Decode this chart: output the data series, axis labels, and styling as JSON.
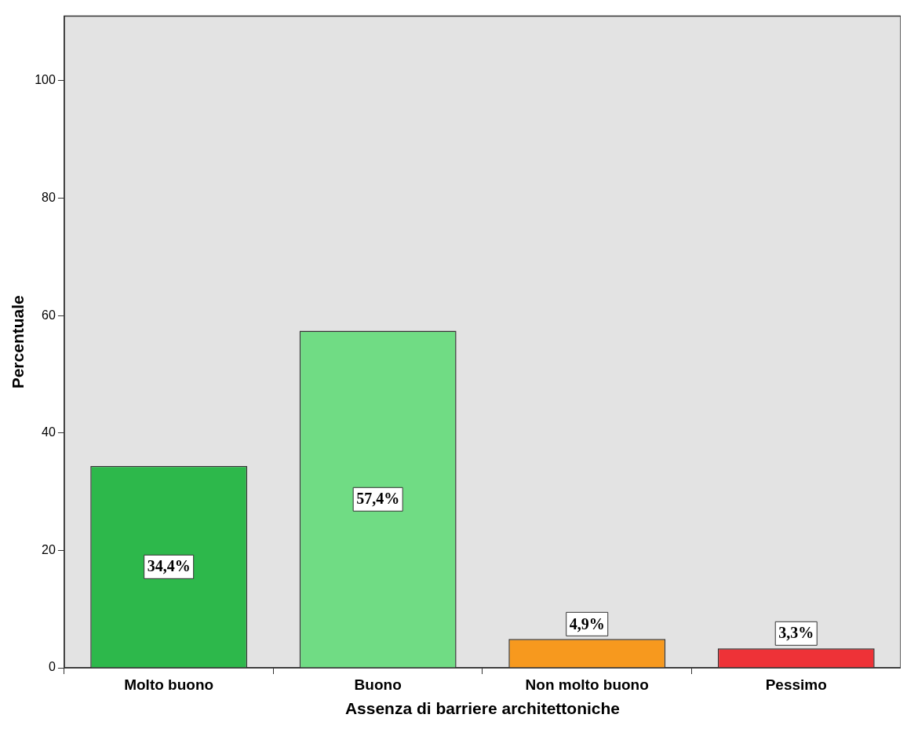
{
  "chart_data": {
    "type": "bar",
    "xlabel": "Assenza di barriere architettoniche",
    "ylabel": "Percentuale",
    "categories": [
      "Molto buono",
      "Buono",
      "Non molto buono",
      "Pessimo"
    ],
    "values": [
      34.4,
      57.4,
      4.9,
      3.3
    ],
    "colors": [
      "#2db84b",
      "#70dc84",
      "#f7991e",
      "#ee3237"
    ],
    "value_labels": [
      "34,4%",
      "57,4%",
      "4,9%",
      "3,3%"
    ],
    "ylim": [
      0,
      111
    ],
    "yticks": [
      0,
      20,
      40,
      60,
      80,
      100
    ]
  }
}
